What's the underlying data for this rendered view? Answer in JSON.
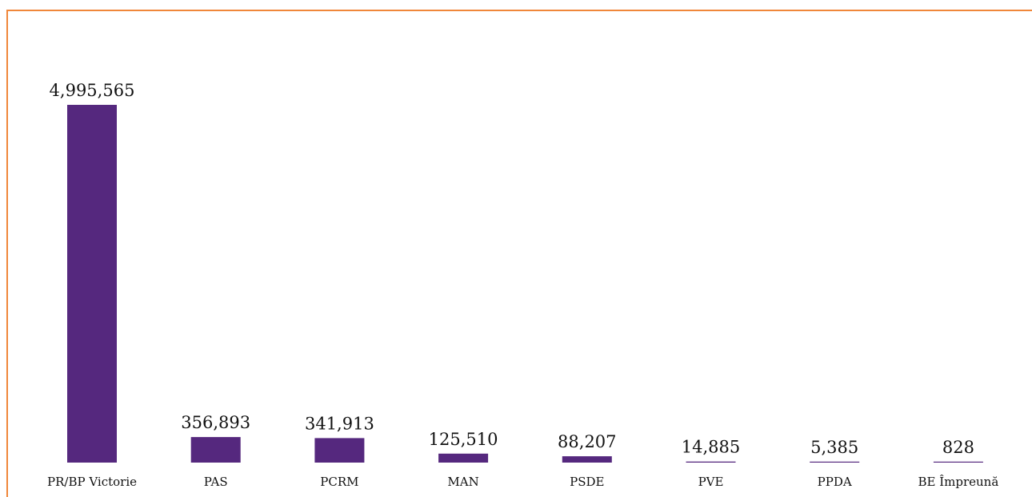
{
  "chart_data": {
    "type": "bar",
    "categories": [
      "PR/BP Victorie",
      "PAS",
      "PCRM",
      "MAN",
      "PSDE",
      "PVE",
      "PPDA",
      "BE Împreună"
    ],
    "values": [
      4995565,
      356893,
      341913,
      125510,
      88207,
      14885,
      5385,
      828
    ],
    "value_labels": [
      "4,995,565",
      "356,893",
      "341,913",
      "125,510",
      "88,207",
      "14,885",
      "5,385",
      "828"
    ],
    "bar_color": "#55287e",
    "border_color": "#f0873a",
    "ylim": [
      0,
      4995565
    ],
    "grid": false,
    "legend": "none"
  }
}
